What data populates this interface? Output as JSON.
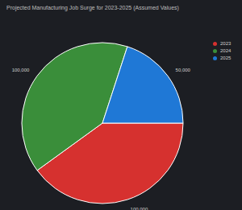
{
  "chart_data": {
    "type": "pie",
    "title": "Projected Manufacturing Job Surge for 2023-2025 (Assumed Values)",
    "categories": [
      "2023",
      "2024",
      "2025"
    ],
    "values": [
      100000,
      100000,
      50000
    ],
    "value_labels": [
      "100,000",
      "100,000",
      "50,000"
    ],
    "colors": [
      "#d6312f",
      "#3a8e3a",
      "#1f78d6"
    ],
    "data_labels": true,
    "legend": "upper right"
  }
}
